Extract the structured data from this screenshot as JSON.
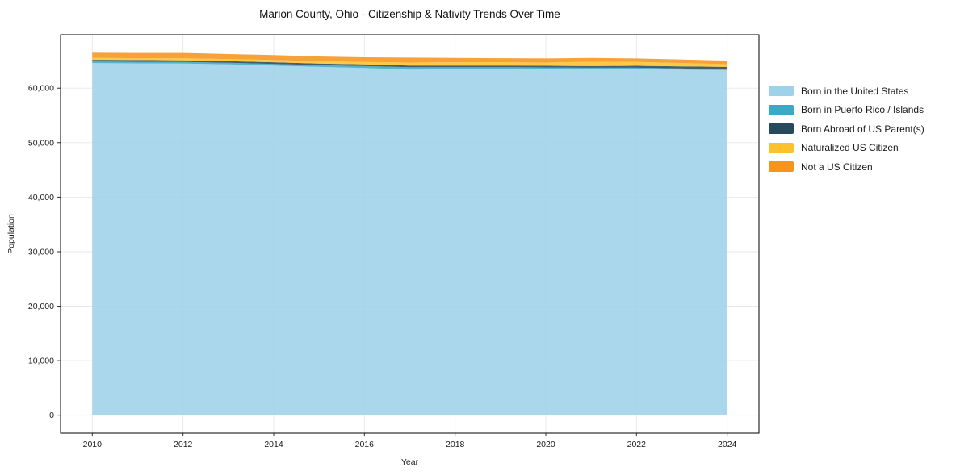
{
  "title": "Marion County, Ohio - Citizenship & Nativity Trends Over Time",
  "chart_data": {
    "type": "area",
    "stacked": true,
    "title": "Marion County, Ohio - Citizenship & Nativity Trends Over Time",
    "xlabel": "Year",
    "ylabel": "Population",
    "x": [
      2010,
      2011,
      2012,
      2013,
      2014,
      2015,
      2016,
      2017,
      2018,
      2019,
      2020,
      2021,
      2022,
      2023,
      2024
    ],
    "series": [
      {
        "name": "Born in the United States",
        "color": "#9ed2e8",
        "values": [
          64600,
          64550,
          64500,
          64350,
          64150,
          63900,
          63700,
          63400,
          63450,
          63500,
          63500,
          63500,
          63500,
          63400,
          63300
        ]
      },
      {
        "name": "Born in Puerto Rico / Islands",
        "color": "#3da8c6",
        "values": [
          300,
          300,
          300,
          300,
          300,
          300,
          350,
          450,
          400,
          350,
          300,
          250,
          250,
          200,
          150
        ]
      },
      {
        "name": "Born Abroad of US Parent(s)",
        "color": "#27495c",
        "values": [
          300,
          300,
          300,
          300,
          300,
          300,
          300,
          300,
          300,
          300,
          300,
          300,
          350,
          400,
          450
        ]
      },
      {
        "name": "Naturalized US Citizen",
        "color": "#fcc22d",
        "values": [
          350,
          350,
          400,
          400,
          400,
          450,
          450,
          550,
          600,
          600,
          600,
          800,
          700,
          600,
          500
        ]
      },
      {
        "name": "Not a US Citizen",
        "color": "#f7941e",
        "values": [
          950,
          950,
          950,
          900,
          900,
          850,
          850,
          900,
          800,
          750,
          750,
          700,
          650,
          650,
          650
        ]
      }
    ],
    "xticks": [
      2010,
      2012,
      2014,
      2016,
      2018,
      2020,
      2022,
      2024
    ],
    "yticks": [
      0,
      10000,
      20000,
      30000,
      40000,
      50000,
      60000
    ],
    "ytick_labels": [
      "0",
      "10,000",
      "20,000",
      "30,000",
      "40,000",
      "50,000",
      "60,000"
    ],
    "xlim": [
      2009.3,
      2024.7
    ],
    "ylim": [
      -3300,
      69800
    ],
    "grid": true,
    "grid_color": "#e7e7e7",
    "spine_color": "#000000",
    "legend_position": "right",
    "fill_opacity": 0.88
  }
}
